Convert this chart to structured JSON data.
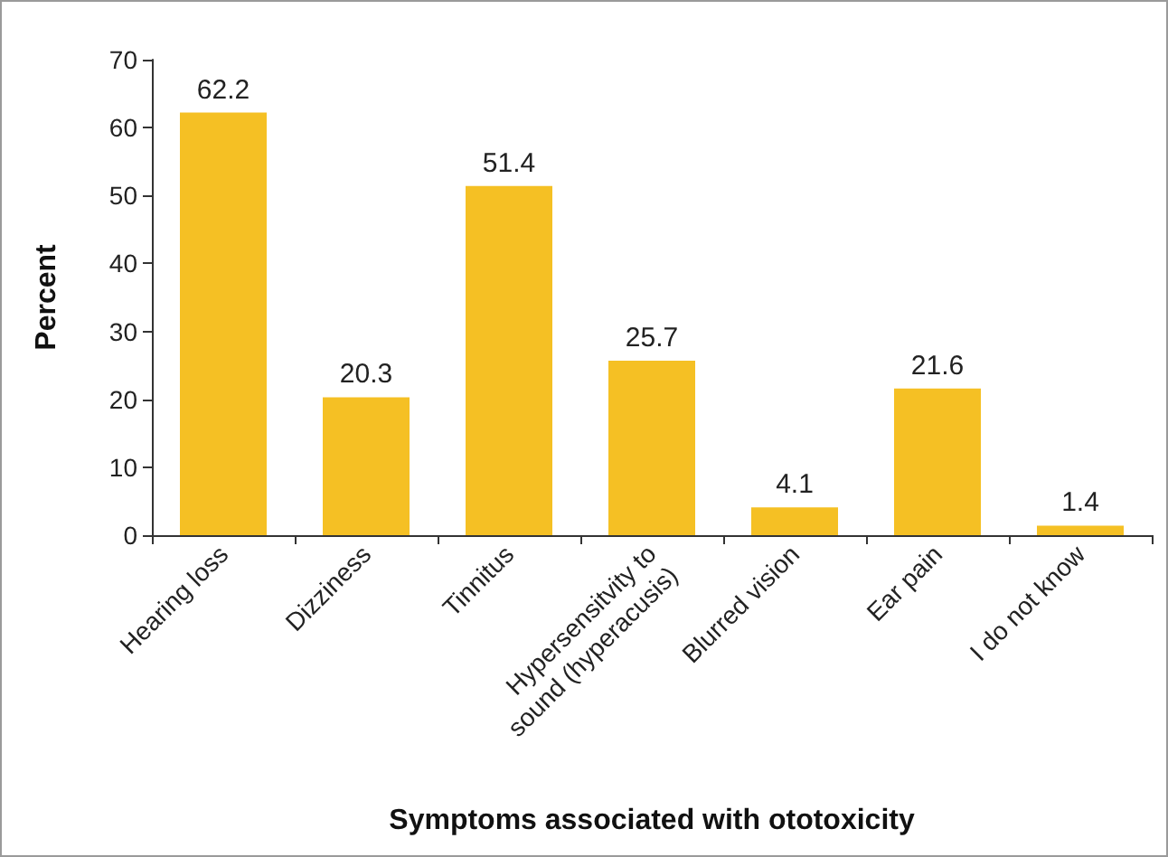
{
  "chart_data": {
    "type": "bar",
    "xlabel": "Symptoms associated with ototoxicity",
    "ylabel": "Percent",
    "categories": [
      "Hearing loss",
      "Dizziness",
      "Tinnitus",
      "Hypersensitvity to\nsound (hyperacusis)",
      "Blurred vision",
      "Ear pain",
      "I do not know"
    ],
    "values": [
      62.2,
      20.3,
      51.4,
      25.7,
      4.1,
      21.6,
      1.4
    ],
    "color": "#f5c024",
    "ylim": [
      0,
      70
    ],
    "yticks": [
      0,
      10,
      20,
      30,
      40,
      50,
      60,
      70
    ],
    "grid": false,
    "data_labels": true
  }
}
